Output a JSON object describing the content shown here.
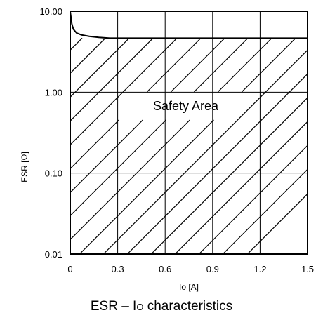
{
  "caption": {
    "prefix": "ESR – I",
    "subscript": "O",
    "suffix": " characteristics"
  },
  "chart_data": {
    "type": "line",
    "title": "",
    "xlabel": "Io [A]",
    "ylabel": "ESR [Ω]",
    "xlim": [
      0,
      1.5
    ],
    "ylim": [
      0.01,
      10
    ],
    "y_scale": "log",
    "grid": true,
    "x_ticks": [
      "0",
      "0.3",
      "0.6",
      "0.9",
      "1.2",
      "1.5"
    ],
    "y_ticks": [
      "0.01",
      "0.10",
      "1.00",
      "10.00"
    ],
    "y_tick_values": [
      0.01,
      0.1,
      1,
      10
    ],
    "series": [
      {
        "x": [
          0.0,
          0.01,
          0.02,
          0.04,
          0.07,
          0.12,
          0.18,
          0.25,
          0.5,
          1.0,
          1.5
        ],
        "y": [
          9.9,
          7.0,
          6.0,
          5.4,
          5.1,
          4.9,
          4.75,
          4.65,
          4.65,
          4.65,
          4.65
        ]
      }
    ],
    "annotations": [
      {
        "text": "Safety Area",
        "x": 0.73,
        "y": 0.6,
        "meaning": "hatched region below boundary curve"
      }
    ]
  }
}
